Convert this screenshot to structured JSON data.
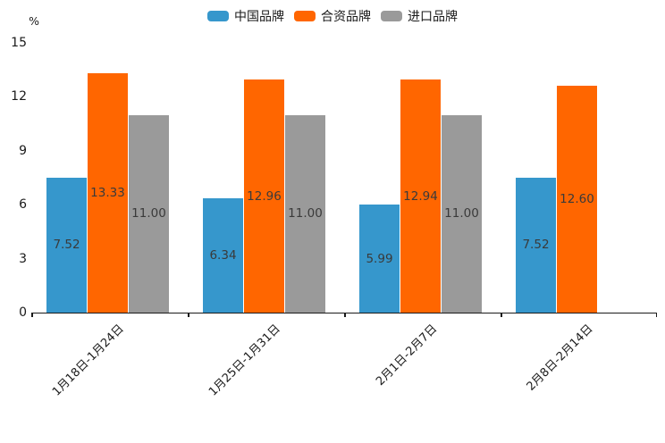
{
  "chart_data": {
    "type": "bar",
    "title": "",
    "ylabel": "%",
    "categories": [
      "1月18日-1月24日",
      "1月25日-1月31日",
      "2月1日-2月7日",
      "2月8日-2月14日"
    ],
    "series": [
      {
        "name": "中国品牌",
        "color": "#3697CC",
        "values": [
          7.52,
          6.34,
          5.99,
          7.52
        ]
      },
      {
        "name": "合资品牌",
        "color": "#FF6600",
        "values": [
          13.33,
          12.96,
          12.94,
          12.6
        ]
      },
      {
        "name": "进口品牌",
        "color": "#9A9A9A",
        "values": [
          11.0,
          11.0,
          11.0,
          null
        ]
      }
    ],
    "value_labels": [
      [
        "7.52",
        "6.34",
        "5.99",
        "7.52"
      ],
      [
        "13.33",
        "12.96",
        "12.94",
        "12.60"
      ],
      [
        "11.00",
        "11.00",
        "11.00",
        null
      ]
    ],
    "ylim": [
      0,
      15
    ],
    "yticks": [
      0,
      3,
      6,
      9,
      12,
      15
    ],
    "grid": false,
    "legend_position": "top",
    "colors": {
      "axis": "#1a1a1a",
      "value_label": "#3a3a3a",
      "background": "#ffffff"
    }
  }
}
